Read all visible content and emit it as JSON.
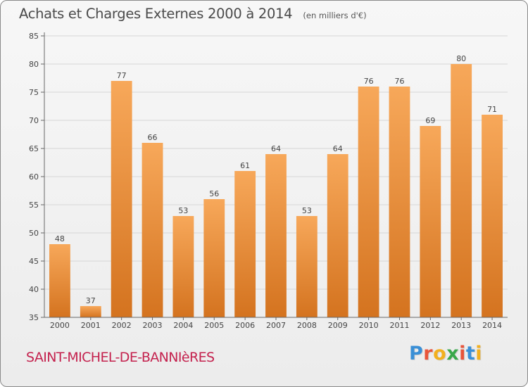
{
  "header": {
    "title": "Achats et Charges Externes 2000 à 2014",
    "subtitle": "(en milliers d'€)"
  },
  "footer": {
    "commune": "SAINT-MICHEL-DE-BANNIèRES",
    "brand": "Proxiti",
    "brand_letters": [
      {
        "ch": "P",
        "color": "#3a8fd6"
      },
      {
        "ch": "r",
        "color": "#e8543a"
      },
      {
        "ch": "o",
        "color": "#f2b01e"
      },
      {
        "ch": "x",
        "color": "#39a84a"
      },
      {
        "ch": "i",
        "color": "#e8543a"
      },
      {
        "ch": "t",
        "color": "#3a8fd6"
      },
      {
        "ch": "i",
        "color": "#f2b01e"
      }
    ]
  },
  "colors": {
    "bar_top": "#f7a85a",
    "bar_bottom": "#d4731f",
    "axis": "#666666",
    "grid": "#d6d6d6",
    "label": "#444444"
  },
  "chart_data": {
    "type": "bar",
    "title": "Achats et Charges Externes 2000 à 2014",
    "subtitle": "(en milliers d'€)",
    "categories": [
      "2000",
      "2001",
      "2002",
      "2003",
      "2004",
      "2005",
      "2006",
      "2007",
      "2008",
      "2009",
      "2010",
      "2011",
      "2012",
      "2013",
      "2014"
    ],
    "values": [
      48,
      37,
      77,
      66,
      53,
      56,
      61,
      64,
      53,
      64,
      76,
      76,
      69,
      80,
      71
    ],
    "ylim": [
      35,
      85
    ],
    "yticks": [
      35,
      40,
      45,
      50,
      55,
      60,
      65,
      70,
      75,
      80,
      85
    ],
    "grid": true,
    "data_labels": true
  }
}
